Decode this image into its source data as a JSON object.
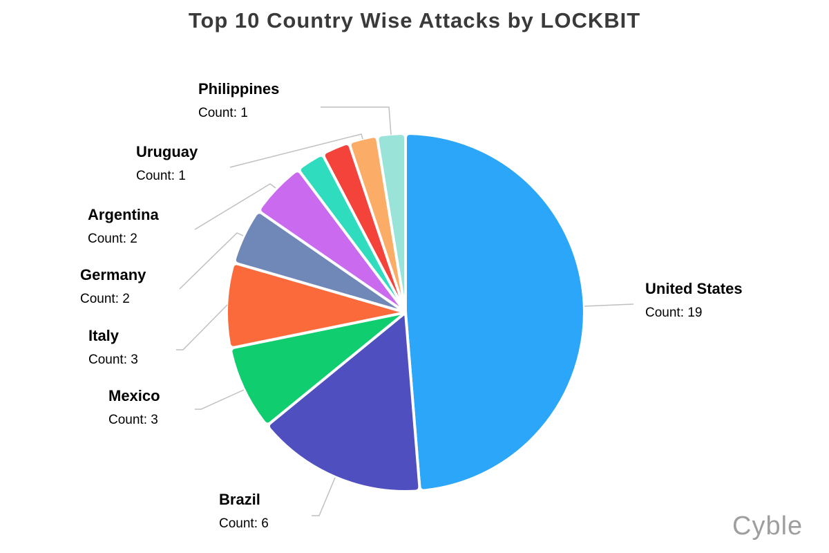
{
  "watermark": {
    "text": "Cyble"
  },
  "chart_data": {
    "type": "pie",
    "title": "Top 10 Country Wise Attacks by LOCKBIT",
    "count_label_prefix": "Count: ",
    "total": 39,
    "start_angle_deg": 0,
    "direction": "clockwise",
    "legend": "none",
    "slices": [
      {
        "label": "United States",
        "count": 19,
        "count_text": "Count: 19",
        "color": "#2ba6f8",
        "label_visible": true
      },
      {
        "label": "Brazil",
        "count": 6,
        "count_text": "Count: 6",
        "color": "#4f4fc0",
        "label_visible": true
      },
      {
        "label": "Mexico",
        "count": 3,
        "count_text": "Count: 3",
        "color": "#10ce6f",
        "label_visible": true
      },
      {
        "label": "Italy",
        "count": 3,
        "count_text": "Count: 3",
        "color": "#fb6a3b",
        "label_visible": true
      },
      {
        "label": "Germany",
        "count": 2,
        "count_text": "Count: 2",
        "color": "#6f88b8",
        "label_visible": true
      },
      {
        "label": "Argentina",
        "count": 2,
        "count_text": "Count: 2",
        "color": "#c96aef",
        "label_visible": true
      },
      {
        "label": "",
        "count": 1,
        "count_text": "Count: 1",
        "color": "#2fdcbe",
        "label_visible": false
      },
      {
        "label": "",
        "count": 1,
        "count_text": "Count: 1",
        "color": "#f3433a",
        "label_visible": false
      },
      {
        "label": "Uruguay",
        "count": 1,
        "count_text": "Count: 1",
        "color": "#fbad68",
        "label_visible": true
      },
      {
        "label": "Philippines",
        "count": 1,
        "count_text": "Count: 1",
        "color": "#9ae3d8",
        "label_visible": true
      }
    ]
  }
}
